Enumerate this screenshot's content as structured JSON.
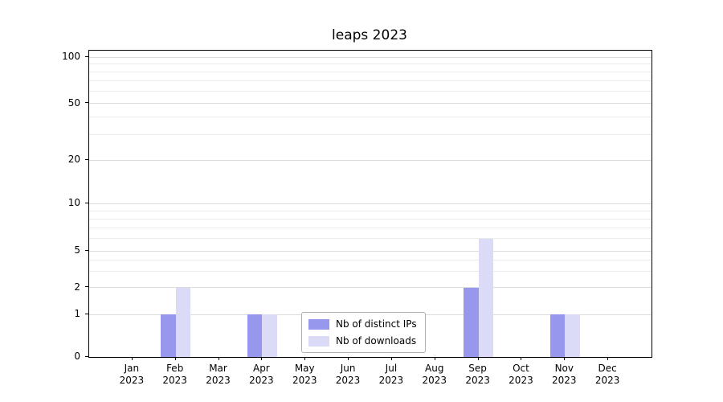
{
  "chart_data": {
    "type": "bar",
    "title": "leaps 2023",
    "categories": [
      "Jan 2023",
      "Feb 2023",
      "Mar 2023",
      "Apr 2023",
      "May 2023",
      "Jun 2023",
      "Jul 2023",
      "Aug 2023",
      "Sep 2023",
      "Oct 2023",
      "Nov 2023",
      "Dec 2023"
    ],
    "x_tick_labels": [
      [
        "Jan",
        "2023"
      ],
      [
        "Feb",
        "2023"
      ],
      [
        "Mar",
        "2023"
      ],
      [
        "Apr",
        "2023"
      ],
      [
        "May",
        "2023"
      ],
      [
        "Jun",
        "2023"
      ],
      [
        "Jul",
        "2023"
      ],
      [
        "Aug",
        "2023"
      ],
      [
        "Sep",
        "2023"
      ],
      [
        "Oct",
        "2023"
      ],
      [
        "Nov",
        "2023"
      ],
      [
        "Dec",
        "2023"
      ]
    ],
    "series": [
      {
        "name": "Nb of distinct IPs",
        "color": "#9797ee",
        "values": [
          0,
          1,
          0,
          1,
          0,
          0,
          0,
          0,
          2,
          0,
          1,
          0
        ]
      },
      {
        "name": "Nb of downloads",
        "color": "#dbdbf8",
        "values": [
          0,
          2,
          0,
          1,
          0,
          0,
          0,
          0,
          6,
          0,
          1,
          0
        ]
      }
    ],
    "yscale": "log-like",
    "ylabel": "",
    "xlabel": "",
    "y_ticks": [
      0,
      1,
      2,
      5,
      10,
      20,
      50,
      100
    ],
    "y_minor_gridlines": [
      3,
      4,
      6,
      7,
      8,
      9,
      30,
      40,
      60,
      70,
      80,
      90
    ],
    "ylim": [
      0,
      110
    ],
    "grid": true,
    "legend_position": "lower center"
  },
  "colors": {
    "grid_major": "#dcdcdc",
    "grid_minor": "#ebebeb",
    "axis": "#000000",
    "background": "#ffffff"
  }
}
